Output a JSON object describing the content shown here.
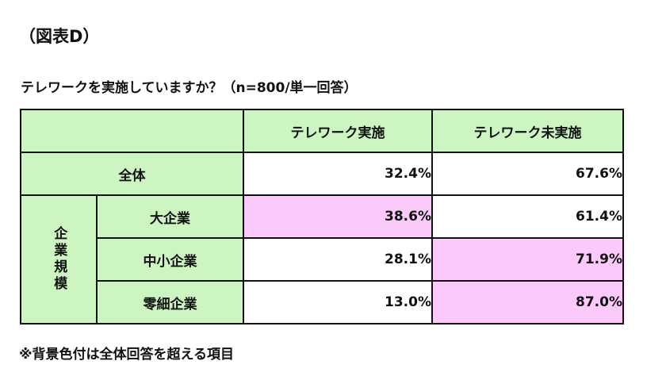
{
  "figure_label": "（図表D）",
  "question": "テレワークを実施していますか？（n=800/単一回答）",
  "table": {
    "columns": [
      "テレワーク実施",
      "テレワーク未実施"
    ],
    "total_label": "全体",
    "total_values": [
      "32.4%",
      "67.6%"
    ],
    "group_label": "企業規模",
    "rows": [
      {
        "label": "大企業",
        "values": [
          "38.6%",
          "61.4%"
        ]
      },
      {
        "label": "中小企業",
        "values": [
          "28.1%",
          "71.9%"
        ]
      },
      {
        "label": "零細企業",
        "values": [
          "13.0%",
          "87.0%"
        ]
      }
    ]
  },
  "highlight_color": "#fcc9fb",
  "header_color": "#ccf5c2",
  "footnote": "※背景色付は全体回答を超える項目"
}
